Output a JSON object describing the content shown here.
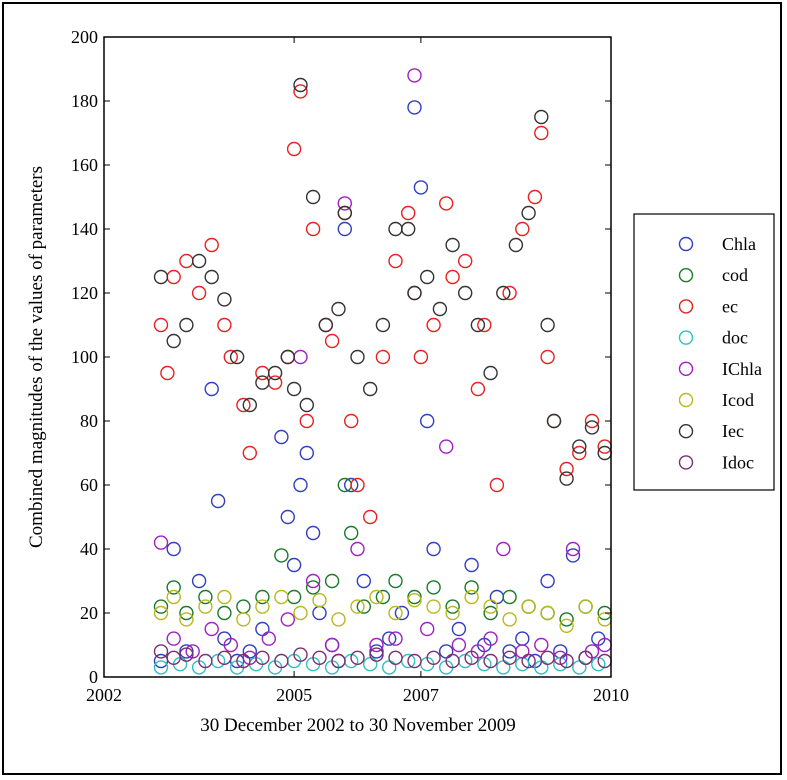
{
  "chart_data": {
    "type": "scatter",
    "xlabel": "30 December 2002 to 30 November 2009",
    "ylabel": "Combined magnitudes of the values of parameters",
    "xlim": [
      2002,
      2010
    ],
    "ylim": [
      0,
      200
    ],
    "xticks": [
      "2002",
      "2005",
      "2007",
      "2010"
    ],
    "xtick_values": [
      2002,
      2005,
      2007,
      2010
    ],
    "yticks": [
      "0",
      "20",
      "40",
      "60",
      "80",
      "100",
      "120",
      "140",
      "160",
      "180",
      "200"
    ],
    "ytick_values": [
      0,
      20,
      40,
      60,
      80,
      100,
      120,
      140,
      160,
      180,
      200
    ],
    "grid": false,
    "legend_position": "right",
    "x_range": [
      "30 December 2002",
      "30 November 2009"
    ],
    "series": [
      {
        "name": "Chla",
        "color": "#2f3fbf",
        "marker": "circle",
        "points": [
          [
            2002.9,
            5
          ],
          [
            2003.1,
            40
          ],
          [
            2003.3,
            8
          ],
          [
            2003.5,
            30
          ],
          [
            2003.7,
            90
          ],
          [
            2003.8,
            55
          ],
          [
            2003.9,
            12
          ],
          [
            2004.1,
            5
          ],
          [
            2004.3,
            8
          ],
          [
            2004.5,
            15
          ],
          [
            2004.8,
            75
          ],
          [
            2004.9,
            50
          ],
          [
            2005.0,
            35
          ],
          [
            2005.1,
            60
          ],
          [
            2005.2,
            70
          ],
          [
            2005.3,
            45
          ],
          [
            2005.4,
            20
          ],
          [
            2005.6,
            10
          ],
          [
            2005.7,
            5
          ],
          [
            2005.8,
            140
          ],
          [
            2005.9,
            60
          ],
          [
            2006.1,
            30
          ],
          [
            2006.3,
            8
          ],
          [
            2006.5,
            12
          ],
          [
            2006.7,
            20
          ],
          [
            2006.9,
            178
          ],
          [
            2007.0,
            153
          ],
          [
            2007.1,
            80
          ],
          [
            2007.2,
            40
          ],
          [
            2007.4,
            8
          ],
          [
            2007.6,
            15
          ],
          [
            2007.8,
            35
          ],
          [
            2008.0,
            10
          ],
          [
            2008.2,
            25
          ],
          [
            2008.4,
            8
          ],
          [
            2008.6,
            12
          ],
          [
            2008.8,
            5
          ],
          [
            2009.0,
            30
          ],
          [
            2009.2,
            8
          ],
          [
            2009.4,
            38
          ],
          [
            2009.6,
            6
          ],
          [
            2009.8,
            12
          ]
        ]
      },
      {
        "name": "cod",
        "color": "#1a7a2a",
        "marker": "circle",
        "points": [
          [
            2002.9,
            22
          ],
          [
            2003.1,
            28
          ],
          [
            2003.3,
            20
          ],
          [
            2003.6,
            25
          ],
          [
            2003.9,
            20
          ],
          [
            2004.2,
            22
          ],
          [
            2004.5,
            25
          ],
          [
            2004.8,
            38
          ],
          [
            2005.0,
            25
          ],
          [
            2005.3,
            28
          ],
          [
            2005.6,
            30
          ],
          [
            2005.8,
            60
          ],
          [
            2005.9,
            45
          ],
          [
            2006.1,
            22
          ],
          [
            2006.4,
            25
          ],
          [
            2006.6,
            30
          ],
          [
            2006.9,
            25
          ],
          [
            2007.2,
            28
          ],
          [
            2007.5,
            22
          ],
          [
            2007.8,
            28
          ],
          [
            2008.1,
            20
          ],
          [
            2008.4,
            25
          ],
          [
            2008.7,
            22
          ],
          [
            2009.0,
            20
          ],
          [
            2009.3,
            18
          ],
          [
            2009.6,
            22
          ],
          [
            2009.9,
            20
          ]
        ]
      },
      {
        "name": "ec",
        "color": "#e82020",
        "marker": "circle",
        "points": [
          [
            2002.9,
            110
          ],
          [
            2003.0,
            95
          ],
          [
            2003.1,
            125
          ],
          [
            2003.3,
            130
          ],
          [
            2003.5,
            120
          ],
          [
            2003.7,
            135
          ],
          [
            2003.9,
            110
          ],
          [
            2004.0,
            100
          ],
          [
            2004.2,
            85
          ],
          [
            2004.3,
            70
          ],
          [
            2004.5,
            95
          ],
          [
            2004.7,
            92
          ],
          [
            2004.9,
            100
          ],
          [
            2005.0,
            165
          ],
          [
            2005.1,
            183
          ],
          [
            2005.2,
            80
          ],
          [
            2005.3,
            140
          ],
          [
            2005.5,
            110
          ],
          [
            2005.6,
            105
          ],
          [
            2005.8,
            145
          ],
          [
            2005.9,
            80
          ],
          [
            2006.0,
            60
          ],
          [
            2006.2,
            50
          ],
          [
            2006.4,
            100
          ],
          [
            2006.6,
            130
          ],
          [
            2006.8,
            145
          ],
          [
            2006.9,
            120
          ],
          [
            2007.0,
            100
          ],
          [
            2007.2,
            110
          ],
          [
            2007.4,
            148
          ],
          [
            2007.5,
            125
          ],
          [
            2007.7,
            130
          ],
          [
            2007.9,
            90
          ],
          [
            2008.0,
            110
          ],
          [
            2008.2,
            60
          ],
          [
            2008.4,
            120
          ],
          [
            2008.6,
            140
          ],
          [
            2008.8,
            150
          ],
          [
            2008.9,
            170
          ],
          [
            2009.0,
            100
          ],
          [
            2009.1,
            80
          ],
          [
            2009.3,
            65
          ],
          [
            2009.5,
            70
          ],
          [
            2009.7,
            80
          ],
          [
            2009.9,
            72
          ]
        ]
      },
      {
        "name": "doc",
        "color": "#30c0c0",
        "marker": "circle",
        "points": [
          [
            2002.9,
            3
          ],
          [
            2003.2,
            4
          ],
          [
            2003.5,
            3
          ],
          [
            2003.8,
            5
          ],
          [
            2004.1,
            3
          ],
          [
            2004.4,
            4
          ],
          [
            2004.7,
            3
          ],
          [
            2005.0,
            5
          ],
          [
            2005.3,
            4
          ],
          [
            2005.6,
            3
          ],
          [
            2005.9,
            5
          ],
          [
            2006.2,
            4
          ],
          [
            2006.5,
            3
          ],
          [
            2006.8,
            5
          ],
          [
            2007.1,
            4
          ],
          [
            2007.4,
            3
          ],
          [
            2007.7,
            5
          ],
          [
            2008.0,
            4
          ],
          [
            2008.3,
            3
          ],
          [
            2008.6,
            4
          ],
          [
            2008.9,
            3
          ],
          [
            2009.2,
            4
          ],
          [
            2009.5,
            3
          ],
          [
            2009.8,
            4
          ]
        ]
      },
      {
        "name": "IChla",
        "color": "#a020c0",
        "marker": "circle",
        "points": [
          [
            2002.9,
            42
          ],
          [
            2003.1,
            12
          ],
          [
            2003.4,
            8
          ],
          [
            2003.7,
            15
          ],
          [
            2004.0,
            10
          ],
          [
            2004.3,
            6
          ],
          [
            2004.6,
            12
          ],
          [
            2004.9,
            18
          ],
          [
            2005.1,
            100
          ],
          [
            2005.3,
            30
          ],
          [
            2005.6,
            10
          ],
          [
            2005.8,
            148
          ],
          [
            2006.0,
            40
          ],
          [
            2006.3,
            10
          ],
          [
            2006.6,
            12
          ],
          [
            2006.9,
            188
          ],
          [
            2007.1,
            15
          ],
          [
            2007.4,
            72
          ],
          [
            2007.6,
            10
          ],
          [
            2007.9,
            8
          ],
          [
            2008.1,
            12
          ],
          [
            2008.3,
            40
          ],
          [
            2008.6,
            8
          ],
          [
            2008.9,
            10
          ],
          [
            2009.2,
            6
          ],
          [
            2009.4,
            40
          ],
          [
            2009.7,
            8
          ],
          [
            2009.9,
            10
          ]
        ]
      },
      {
        "name": "Icod",
        "color": "#b8b820",
        "marker": "circle",
        "points": [
          [
            2002.9,
            20
          ],
          [
            2003.1,
            25
          ],
          [
            2003.3,
            18
          ],
          [
            2003.6,
            22
          ],
          [
            2003.9,
            25
          ],
          [
            2004.2,
            18
          ],
          [
            2004.5,
            22
          ],
          [
            2004.8,
            25
          ],
          [
            2005.1,
            20
          ],
          [
            2005.4,
            24
          ],
          [
            2005.7,
            18
          ],
          [
            2006.0,
            22
          ],
          [
            2006.3,
            25
          ],
          [
            2006.6,
            20
          ],
          [
            2006.9,
            24
          ],
          [
            2007.2,
            22
          ],
          [
            2007.5,
            20
          ],
          [
            2007.8,
            25
          ],
          [
            2008.1,
            22
          ],
          [
            2008.4,
            18
          ],
          [
            2008.7,
            22
          ],
          [
            2009.0,
            20
          ],
          [
            2009.3,
            16
          ],
          [
            2009.6,
            22
          ],
          [
            2009.9,
            18
          ]
        ]
      },
      {
        "name": "Iec",
        "color": "#333333",
        "marker": "circle",
        "points": [
          [
            2002.9,
            125
          ],
          [
            2003.1,
            105
          ],
          [
            2003.3,
            110
          ],
          [
            2003.5,
            130
          ],
          [
            2003.7,
            125
          ],
          [
            2003.9,
            118
          ],
          [
            2004.1,
            100
          ],
          [
            2004.3,
            85
          ],
          [
            2004.5,
            92
          ],
          [
            2004.7,
            95
          ],
          [
            2004.9,
            100
          ],
          [
            2005.0,
            90
          ],
          [
            2005.1,
            185
          ],
          [
            2005.2,
            85
          ],
          [
            2005.3,
            150
          ],
          [
            2005.5,
            110
          ],
          [
            2005.7,
            115
          ],
          [
            2005.8,
            145
          ],
          [
            2006.0,
            100
          ],
          [
            2006.2,
            90
          ],
          [
            2006.4,
            110
          ],
          [
            2006.6,
            140
          ],
          [
            2006.8,
            140
          ],
          [
            2006.9,
            120
          ],
          [
            2007.1,
            125
          ],
          [
            2007.3,
            115
          ],
          [
            2007.5,
            135
          ],
          [
            2007.7,
            120
          ],
          [
            2007.9,
            110
          ],
          [
            2008.1,
            95
          ],
          [
            2008.3,
            120
          ],
          [
            2008.5,
            135
          ],
          [
            2008.7,
            145
          ],
          [
            2008.9,
            175
          ],
          [
            2009.0,
            110
          ],
          [
            2009.1,
            80
          ],
          [
            2009.3,
            62
          ],
          [
            2009.5,
            72
          ],
          [
            2009.7,
            78
          ],
          [
            2009.9,
            70
          ]
        ]
      },
      {
        "name": "Idoc",
        "color": "#7a3070",
        "marker": "circle",
        "points": [
          [
            2002.9,
            8
          ],
          [
            2003.1,
            6
          ],
          [
            2003.3,
            7
          ],
          [
            2003.6,
            5
          ],
          [
            2003.9,
            6
          ],
          [
            2004.2,
            5
          ],
          [
            2004.5,
            6
          ],
          [
            2004.8,
            5
          ],
          [
            2005.1,
            7
          ],
          [
            2005.4,
            6
          ],
          [
            2005.7,
            5
          ],
          [
            2006.0,
            6
          ],
          [
            2006.3,
            7
          ],
          [
            2006.6,
            6
          ],
          [
            2006.9,
            5
          ],
          [
            2007.2,
            6
          ],
          [
            2007.5,
            5
          ],
          [
            2007.8,
            6
          ],
          [
            2008.1,
            5
          ],
          [
            2008.4,
            6
          ],
          [
            2008.7,
            5
          ],
          [
            2009.0,
            6
          ],
          [
            2009.3,
            5
          ],
          [
            2009.6,
            6
          ],
          [
            2009.9,
            5
          ]
        ]
      }
    ]
  }
}
